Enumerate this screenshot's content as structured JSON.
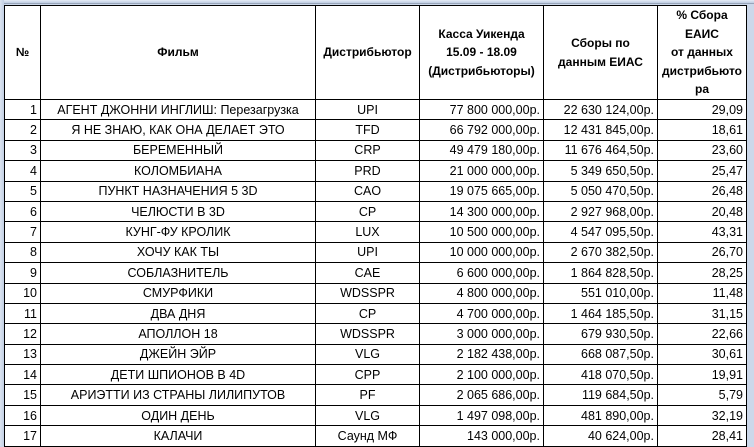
{
  "sheet": {
    "background_color": "#ccd8ea",
    "grid_border_color": "#000000",
    "cell_background": "#ffffff"
  },
  "table": {
    "columns": [
      {
        "key": "num",
        "label": "№"
      },
      {
        "key": "film",
        "label": "Фильм"
      },
      {
        "key": "dist",
        "label": "Дистрибьютор"
      },
      {
        "key": "kassa",
        "label": "Касса Уикенда\n15.09 - 18.09\n(Дистрибьюторы)"
      },
      {
        "key": "eias",
        "label": "Сборы по\nданным ЕИАС"
      },
      {
        "key": "pct",
        "label": "% Сбора ЕАИС\nот данных\nдистрибьютора"
      }
    ],
    "rows": [
      {
        "num": "1",
        "film": "АГЕНТ ДЖОННИ ИНГЛИШ: Перезагрузка",
        "dist": "UPI",
        "kassa": "77 800 000,00р.",
        "eias": "22 630 124,00р.",
        "pct": "29,09"
      },
      {
        "num": "2",
        "film": "Я НЕ ЗНАЮ, КАК ОНА ДЕЛАЕТ ЭТО",
        "dist": "TFD",
        "kassa": "66 792 000,00р.",
        "eias": "12 431 845,00р.",
        "pct": "18,61"
      },
      {
        "num": "3",
        "film": "БЕРЕМЕННЫЙ",
        "dist": "CRP",
        "kassa": "49 479 180,00р.",
        "eias": "11 676 464,50р.",
        "pct": "23,60"
      },
      {
        "num": "4",
        "film": "КОЛОМБИАНА",
        "dist": "PRD",
        "kassa": "21 000 000,00р.",
        "eias": "5 349 650,50р.",
        "pct": "25,47"
      },
      {
        "num": "5",
        "film": "ПУНКТ НАЗНАЧЕНИЯ 5 3D",
        "dist": "CAO",
        "kassa": "19 075 665,00р.",
        "eias": "5 050 470,50р.",
        "pct": "26,48"
      },
      {
        "num": "6",
        "film": "ЧЕЛЮСТИ В 3D",
        "dist": "CP",
        "kassa": "14 300 000,00р.",
        "eias": "2 927 968,00р.",
        "pct": "20,48"
      },
      {
        "num": "7",
        "film": "КУНГ-ФУ КРОЛИК",
        "dist": "LUX",
        "kassa": "10 500 000,00р.",
        "eias": "4 547 095,50р.",
        "pct": "43,31"
      },
      {
        "num": "8",
        "film": "ХОЧУ КАК ТЫ",
        "dist": "UPI",
        "kassa": "10 000 000,00р.",
        "eias": "2 670 382,50р.",
        "pct": "26,70"
      },
      {
        "num": "9",
        "film": "СОБЛАЗНИТЕЛЬ",
        "dist": "CAE",
        "kassa": "6 600 000,00р.",
        "eias": "1 864 828,50р.",
        "pct": "28,25"
      },
      {
        "num": "10",
        "film": "СМУРФИКИ",
        "dist": "WDSSPR",
        "kassa": "4 800 000,00р.",
        "eias": "551 010,00р.",
        "pct": "11,48"
      },
      {
        "num": "11",
        "film": "ДВА ДНЯ",
        "dist": "CP",
        "kassa": "4 700 000,00р.",
        "eias": "1 464 185,50р.",
        "pct": "31,15"
      },
      {
        "num": "12",
        "film": "АПОЛЛОН 18",
        "dist": "WDSSPR",
        "kassa": "3 000 000,00р.",
        "eias": "679 930,50р.",
        "pct": "22,66"
      },
      {
        "num": "13",
        "film": "ДЖЕЙН ЭЙР",
        "dist": "VLG",
        "kassa": "2 182 438,00р.",
        "eias": "668 087,50р.",
        "pct": "30,61"
      },
      {
        "num": "14",
        "film": "ДЕТИ ШПИОНОВ В 4D",
        "dist": "CPP",
        "kassa": "2 100 000,00р.",
        "eias": "418 070,50р.",
        "pct": "19,91"
      },
      {
        "num": "15",
        "film": "АРИЭТТИ ИЗ СТРАНЫ ЛИЛИПУТОВ",
        "dist": "PF",
        "kassa": "2 065 686,00р.",
        "eias": "119 684,50р.",
        "pct": "5,79"
      },
      {
        "num": "16",
        "film": "ОДИН ДЕНЬ",
        "dist": "VLG",
        "kassa": "1 497 098,00р.",
        "eias": "481 890,00р.",
        "pct": "32,19"
      },
      {
        "num": "17",
        "film": "КАЛАЧИ",
        "dist": "Саунд МФ",
        "kassa": "143 000,00р.",
        "eias": "40 624,00р.",
        "pct": "28,41"
      }
    ]
  }
}
